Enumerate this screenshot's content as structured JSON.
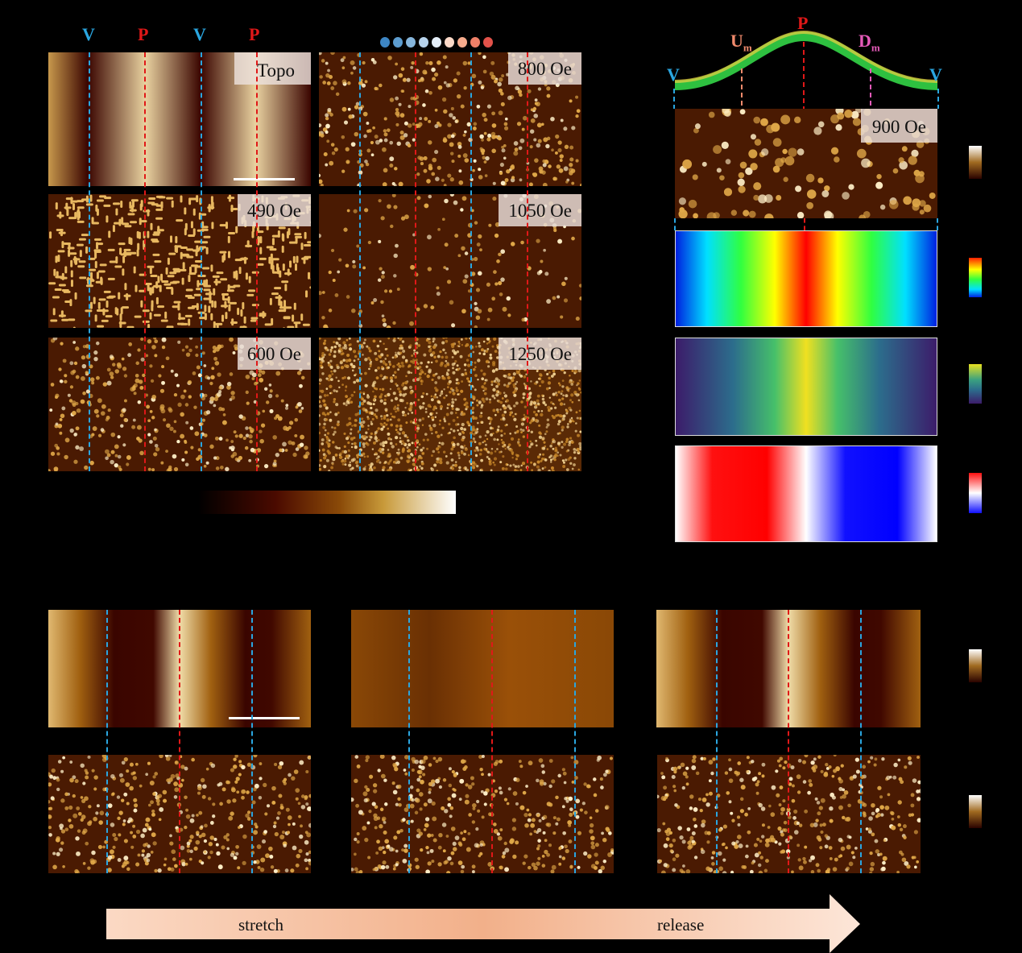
{
  "panel_a": {
    "markers": [
      "V",
      "P",
      "V",
      "P"
    ],
    "images": [
      {
        "label": "Topo",
        "type": "topo"
      },
      {
        "label": "800 Oe",
        "type": "dots"
      },
      {
        "label": "490 Oe",
        "type": "stripes"
      },
      {
        "label": "1050 Oe",
        "type": "sparse"
      },
      {
        "label": "600 Oe",
        "type": "dots"
      },
      {
        "label": "1250 Oe",
        "type": "noise"
      }
    ],
    "field_dot_colors": [
      "#3d86c4",
      "#5d9dd0",
      "#86b6dc",
      "#b7d3ec",
      "#e4eef8",
      "#fbd9c8",
      "#f6ab8c",
      "#ef8068",
      "#e2524a"
    ]
  },
  "panel_b": {
    "curve_labels": {
      "v_left": "V",
      "u": "U",
      "u_sub": "m",
      "p": "P",
      "d": "D",
      "d_sub": "m",
      "v_right": "V"
    },
    "image_label": "900 Oe",
    "maps": [
      "rainbow",
      "viridis",
      "bwr"
    ]
  },
  "panel_c": {
    "arrow_left": "stretch",
    "arrow_right": "release"
  },
  "colors": {
    "valley": "#2aa6e0",
    "peak": "#e01818",
    "u_marker": "#f08a6c",
    "d_marker": "#e45ab8"
  }
}
